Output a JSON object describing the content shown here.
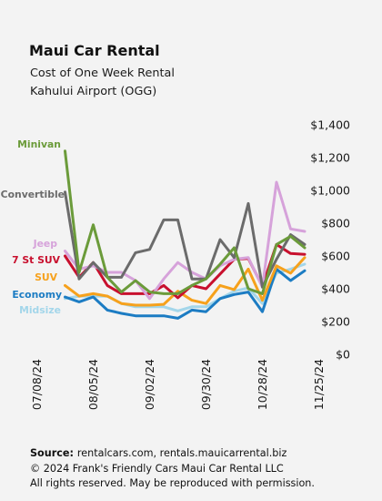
{
  "chart_data": {
    "type": "line",
    "title": "Maui Car Rental",
    "subtitle": [
      "Cost of One Week Rental",
      "Kahului Airport (OGG)"
    ],
    "x_axis": "date",
    "x": [
      "07/22/24",
      "07/29/24",
      "08/05/24",
      "08/12/24",
      "08/19/24",
      "08/26/24",
      "09/02/24",
      "09/09/24",
      "09/16/24",
      "09/23/24",
      "09/30/24",
      "10/07/24",
      "10/14/24",
      "10/21/24",
      "10/28/24",
      "11/04/24",
      "11/11/24",
      "11/18/24"
    ],
    "xlim": [
      "07/08/24",
      "11/25/24"
    ],
    "x_ticks": [
      "07/08/24",
      "08/05/24",
      "09/02/24",
      "09/30/24",
      "10/28/24",
      "11/25/24"
    ],
    "ylim": [
      0,
      1400
    ],
    "y_ticks": [
      {
        "value": 0,
        "label": "$0"
      },
      {
        "value": 200,
        "label": "$200"
      },
      {
        "value": 400,
        "label": "$400"
      },
      {
        "value": 600,
        "label": "$600"
      },
      {
        "value": 800,
        "label": "$800"
      },
      {
        "value": 1000,
        "label": "$1,000"
      },
      {
        "value": 1200,
        "label": "$1,200"
      },
      {
        "value": 1400,
        "label": "$1,400"
      }
    ],
    "y_axis": "right",
    "grid": false,
    "legend_placement": "left",
    "series": [
      {
        "name": "Minivan",
        "color": "#6b9b3a",
        "values": [
          1240,
          500,
          790,
          470,
          380,
          450,
          380,
          370,
          370,
          420,
          460,
          550,
          650,
          400,
          370,
          670,
          720,
          650
        ]
      },
      {
        "name": "Convertible",
        "color": "#6b6b6b",
        "values": [
          990,
          460,
          560,
          470,
          470,
          620,
          640,
          820,
          820,
          460,
          460,
          700,
          590,
          920,
          410,
          580,
          730,
          670
        ]
      },
      {
        "name": "Jeep",
        "color": "#d6a2da",
        "values": [
          630,
          520,
          540,
          500,
          500,
          450,
          340,
          460,
          560,
          500,
          460,
          540,
          580,
          590,
          410,
          1050,
          765,
          750
        ]
      },
      {
        "name": "7 St SUV",
        "color": "#c8102e",
        "values": [
          600,
          470,
          560,
          420,
          370,
          370,
          370,
          420,
          345,
          420,
          400,
          490,
          580,
          585,
          415,
          670,
          615,
          610
        ]
      },
      {
        "name": "SUV",
        "color": "#f6a11c",
        "values": [
          420,
          355,
          370,
          355,
          310,
          300,
          300,
          305,
          385,
          330,
          310,
          420,
          395,
          520,
          330,
          540,
          495,
          590
        ]
      },
      {
        "name": "Economy",
        "color": "#1c7cc3",
        "values": [
          350,
          320,
          350,
          270,
          250,
          235,
          235,
          235,
          220,
          270,
          260,
          340,
          365,
          380,
          260,
          520,
          450,
          510
        ]
      },
      {
        "name": "Midsize",
        "color": "#a3d6ea",
        "values": [
          340,
          355,
          355,
          355,
          310,
          290,
          290,
          290,
          265,
          290,
          290,
          340,
          385,
          405,
          310,
          495,
          520,
          550
        ]
      }
    ]
  },
  "footer": {
    "source_label": "Source:",
    "source": "rentalcars.com, rentals.mauicarrental.biz",
    "copyright": "© 2024 Frank's Friendly Cars Maui Car Rental LLC",
    "rights": "All rights reserved. May be reproduced with permission."
  }
}
